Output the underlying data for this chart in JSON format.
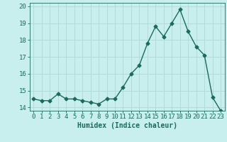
{
  "x": [
    0,
    1,
    2,
    3,
    4,
    5,
    6,
    7,
    8,
    9,
    10,
    11,
    12,
    13,
    14,
    15,
    16,
    17,
    18,
    19,
    20,
    21,
    22,
    23
  ],
  "y": [
    14.5,
    14.4,
    14.4,
    14.8,
    14.5,
    14.5,
    14.4,
    14.3,
    14.2,
    14.5,
    14.5,
    15.2,
    16.0,
    16.5,
    17.8,
    18.8,
    18.2,
    19.0,
    19.8,
    18.5,
    17.6,
    17.1,
    14.6,
    13.8
  ],
  "line_color": "#1a6b5a",
  "marker": "D",
  "markersize": 2.5,
  "linewidth": 1.0,
  "bg_color": "#c8eeee",
  "grid_color": "#b0d8d8",
  "xlim": [
    -0.5,
    23.5
  ],
  "ylim": [
    13.8,
    20.2
  ],
  "yticks": [
    14,
    15,
    16,
    17,
    18,
    19,
    20
  ],
  "xticks": [
    0,
    1,
    2,
    3,
    4,
    5,
    6,
    7,
    8,
    9,
    10,
    11,
    12,
    13,
    14,
    15,
    16,
    17,
    18,
    19,
    20,
    21,
    22,
    23
  ],
  "tick_color": "#1a6b5a",
  "label_color": "#1a6b5a",
  "xlabel": "Humidex (Indice chaleur)",
  "xlabel_fontsize": 7,
  "tick_fontsize": 6.5
}
